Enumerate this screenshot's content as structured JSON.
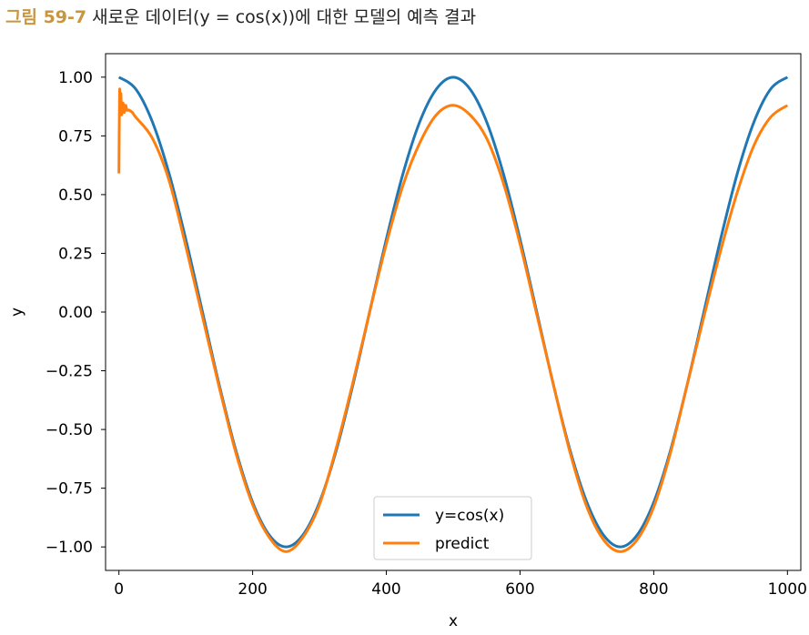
{
  "caption": {
    "number": "그림 59-7",
    "text": "새로운 데이터(y = cos(x))에 대한 모델의 예측 결과"
  },
  "colors": {
    "series_1": "#1f77b4",
    "series_2": "#ff7f0e"
  },
  "chart_data": {
    "type": "line",
    "title": "",
    "xlabel": "x",
    "ylabel": "y",
    "xlim": [
      -20,
      1020
    ],
    "ylim": [
      -1.1,
      1.1
    ],
    "xticks": [
      0,
      200,
      400,
      600,
      800,
      1000
    ],
    "xtick_labels": [
      "0",
      "200",
      "400",
      "600",
      "800",
      "1000"
    ],
    "yticks": [
      1.0,
      0.75,
      0.5,
      0.25,
      0.0,
      -0.25,
      -0.5,
      -0.75,
      -1.0
    ],
    "ytick_labels": [
      "1.00",
      "0.75",
      "0.50",
      "0.25",
      "0.00",
      "−0.25",
      "−0.50",
      "−0.75",
      "−1.00"
    ],
    "grid": false,
    "legend_position": "lower center",
    "series": [
      {
        "name": "y=cos(x)",
        "color": "#1f77b4",
        "x": [
          0,
          25,
          50,
          75,
          100,
          125,
          150,
          175,
          200,
          225,
          250,
          275,
          300,
          325,
          350,
          375,
          400,
          425,
          450,
          475,
          500,
          525,
          550,
          575,
          600,
          625,
          650,
          675,
          700,
          725,
          750,
          775,
          800,
          825,
          850,
          875,
          900,
          925,
          950,
          975,
          1000
        ],
        "y": [
          1.0,
          0.95,
          0.81,
          0.59,
          0.31,
          0.0,
          -0.31,
          -0.59,
          -0.81,
          -0.95,
          -1.0,
          -0.95,
          -0.81,
          -0.59,
          -0.31,
          0.0,
          0.31,
          0.59,
          0.81,
          0.95,
          1.0,
          0.95,
          0.81,
          0.59,
          0.31,
          0.0,
          -0.31,
          -0.59,
          -0.81,
          -0.95,
          -1.0,
          -0.95,
          -0.81,
          -0.59,
          -0.31,
          0.0,
          0.31,
          0.59,
          0.81,
          0.95,
          1.0
        ]
      },
      {
        "name": "predict",
        "color": "#ff7f0e",
        "x": [
          0,
          1,
          2,
          3,
          4,
          6,
          8,
          10,
          12,
          15,
          20,
          25,
          50,
          75,
          100,
          125,
          150,
          175,
          200,
          225,
          250,
          275,
          300,
          325,
          350,
          375,
          400,
          425,
          450,
          475,
          500,
          525,
          550,
          575,
          600,
          625,
          650,
          675,
          700,
          725,
          750,
          775,
          800,
          825,
          850,
          875,
          900,
          925,
          950,
          975,
          1000
        ],
        "y": [
          0.59,
          0.94,
          0.86,
          0.93,
          0.84,
          0.89,
          0.85,
          0.88,
          0.86,
          0.86,
          0.85,
          0.83,
          0.74,
          0.56,
          0.28,
          -0.02,
          -0.32,
          -0.6,
          -0.82,
          -0.96,
          -1.02,
          -0.96,
          -0.82,
          -0.58,
          -0.3,
          0.0,
          0.29,
          0.54,
          0.72,
          0.84,
          0.88,
          0.84,
          0.74,
          0.55,
          0.29,
          -0.01,
          -0.31,
          -0.6,
          -0.83,
          -0.97,
          -1.02,
          -0.97,
          -0.83,
          -0.6,
          -0.31,
          -0.02,
          0.26,
          0.51,
          0.71,
          0.83,
          0.88
        ]
      }
    ]
  }
}
